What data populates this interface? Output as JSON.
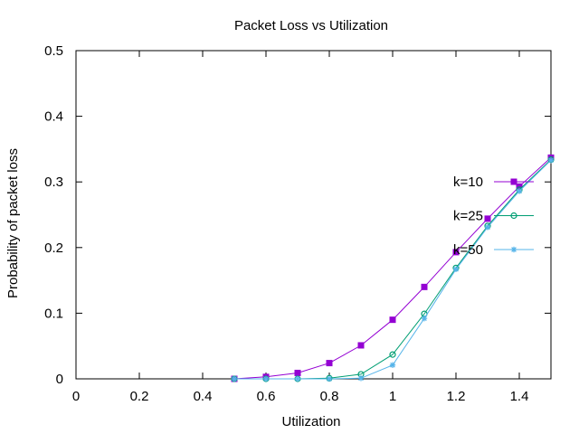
{
  "chart_data": {
    "type": "line",
    "title": "Packet Loss vs Utilization",
    "xlabel": "Utilization",
    "ylabel": "Probability of packet loss",
    "xlim": [
      0,
      1.5
    ],
    "ylim": [
      0,
      0.5
    ],
    "x_ticks": [
      0,
      0.2,
      0.4,
      0.6,
      0.8,
      1,
      1.2,
      1.4
    ],
    "x_tick_labels": [
      "0",
      "0.2",
      "0.4",
      "0.6",
      "0.8",
      "1",
      "1.2",
      "1.4"
    ],
    "y_ticks": [
      0,
      0.1,
      0.2,
      0.3,
      0.4,
      0.5
    ],
    "y_tick_labels": [
      "0",
      "0.1",
      "0.2",
      "0.3",
      "0.4",
      "0.5"
    ],
    "grid": false,
    "legend_position": "right",
    "x": [
      0.5,
      0.6,
      0.7,
      0.8,
      0.9,
      1.0,
      1.1,
      1.2,
      1.3,
      1.4,
      1.5
    ],
    "series": [
      {
        "name": "k=10",
        "color": "#9400d3",
        "marker": "filled-square",
        "values": [
          0.0,
          0.003,
          0.009,
          0.024,
          0.051,
          0.09,
          0.14,
          0.193,
          0.244,
          0.293,
          0.337
        ]
      },
      {
        "name": "k=25",
        "color": "#009e73",
        "marker": "open-circle",
        "values": [
          0.0,
          0.0,
          0.0,
          0.001,
          0.007,
          0.037,
          0.099,
          0.169,
          0.233,
          0.288,
          0.334
        ]
      },
      {
        "name": "k=50",
        "color": "#56b4e9",
        "marker": "star",
        "values": [
          0.0,
          0.0,
          0.0,
          0.0,
          0.001,
          0.021,
          0.092,
          0.167,
          0.231,
          0.286,
          0.333
        ]
      }
    ]
  }
}
